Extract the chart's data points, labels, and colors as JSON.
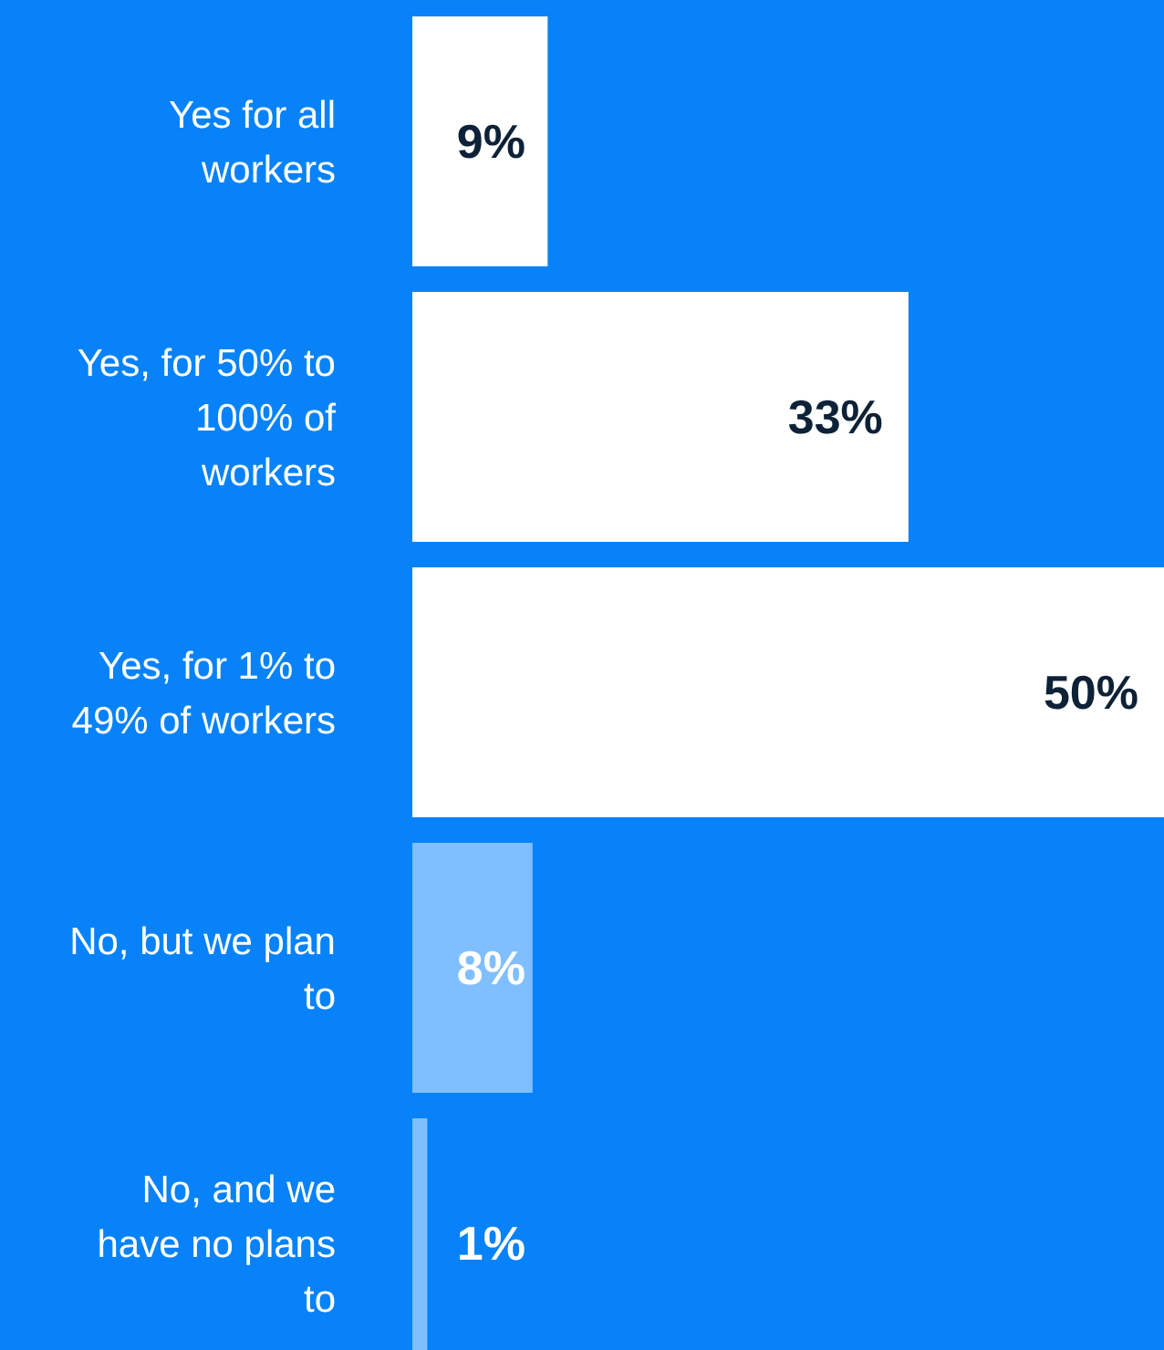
{
  "chart_data": {
    "type": "bar",
    "orientation": "horizontal",
    "categories": [
      "Yes for all workers",
      "Yes, for 50% to 100% of workers",
      "Yes, for 1% to 49% of workers",
      "No, but we plan to",
      "No, and we have no plans to"
    ],
    "values": [
      9,
      33,
      50,
      8,
      1
    ],
    "colors": [
      "#ffffff",
      "#ffffff",
      "#ffffff",
      "#80bfff",
      "#80bfff"
    ],
    "value_labels": [
      "9%",
      "33%",
      "50%",
      "8%",
      "1%"
    ]
  }
}
